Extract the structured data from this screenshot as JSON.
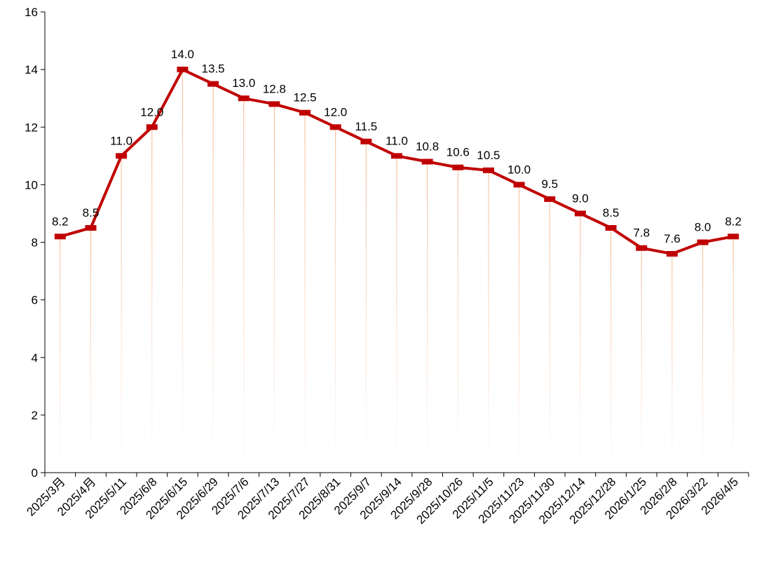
{
  "chart_data": {
    "type": "line",
    "categories": [
      "2025/3月",
      "2025/4月",
      "2025/5/11",
      "2025/6/8",
      "2025/6/15",
      "2025/6/29",
      "2025/7/6",
      "2025/7/13",
      "2025/7/27",
      "2025/8/31",
      "2025/9/7",
      "2025/9/14",
      "2025/9/28",
      "2025/10/26",
      "2025/11/5",
      "2025/11/23",
      "2025/11/30",
      "2025/12/14",
      "2025/12/28",
      "2026/1/25",
      "2026/2/8",
      "2026/3/22",
      "2026/4/5"
    ],
    "values": [
      8.2,
      8.5,
      11.0,
      12.0,
      14.0,
      13.5,
      13.0,
      12.8,
      12.5,
      12.0,
      11.5,
      11.0,
      10.8,
      10.6,
      10.5,
      10.0,
      9.5,
      9.0,
      8.5,
      7.8,
      7.6,
      8.0,
      8.2
    ],
    "value_labels": [
      "8.2",
      "8.5",
      "11.0",
      "12.0",
      "14.0",
      "13.5",
      "13.0",
      "12.8",
      "12.5",
      "12.0",
      "11.5",
      "11.0",
      "10.8",
      "10.6",
      "10.5",
      "10.0",
      "9.5",
      "9.0",
      "8.5",
      "7.8",
      "7.6",
      "8.0",
      "8.2"
    ],
    "title": "",
    "xlabel": "",
    "ylabel": "",
    "ylim": [
      0,
      16
    ],
    "yticks": [
      "0",
      "2",
      "4",
      "6",
      "8",
      "10",
      "12",
      "14",
      "16"
    ],
    "grid": false,
    "legend": "none",
    "line_color": "#c00000",
    "drop_line_color": "#f4b183"
  }
}
